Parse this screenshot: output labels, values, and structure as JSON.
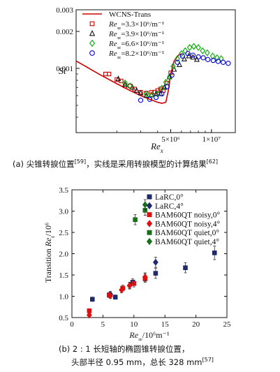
{
  "chart_data": [
    {
      "type": "scatter",
      "ylabel": "St",
      "xlabel": "Re_x",
      "xscale": "log",
      "yscale": "log",
      "xlim": [
        1000000,
        15000000
      ],
      "ylim": [
        0.0003,
        0.003
      ],
      "x_ticks": [
        {
          "value": 5000000,
          "label": "5×10⁶"
        },
        {
          "value": 10000000,
          "label": "1×10⁷"
        }
      ],
      "y_ticks": [
        {
          "value": 0.001,
          "label": "0.001"
        },
        {
          "value": 0.002,
          "label": "0.002"
        },
        {
          "value": 0.003,
          "label": "0.003"
        }
      ],
      "legend_position": "top-left",
      "series": [
        {
          "name": "WCNS-Trans",
          "kind": "line",
          "color": "#cc0000",
          "x": [
            1000000,
            1500000,
            2000000,
            2500000,
            3000000,
            3500000,
            4000000,
            4300000,
            4600000,
            4800000,
            5000000,
            5300000,
            5700000,
            6000000
          ],
          "y": [
            0.00115,
            0.00089,
            0.00075,
            0.00066,
            0.0006,
            0.00056,
            0.00053,
            0.00052,
            0.00053,
            0.00066,
            0.0009,
            0.00115,
            0.00128,
            0.00132
          ]
        },
        {
          "name": "Re∞=3.3×10⁶/m⁻¹",
          "kind": "square",
          "color": "#cc0000",
          "x": [
            1650000,
            1750000,
            2000000,
            2150000,
            2300000,
            2500000,
            2700000,
            3000000,
            3300000,
            3600000,
            3800000,
            4000000,
            4200000,
            4400000,
            4700000,
            5000000
          ],
          "y": [
            0.0009,
            0.0009,
            0.00081,
            0.00079,
            0.00072,
            0.00072,
            0.00068,
            0.00064,
            0.00063,
            0.00064,
            0.00064,
            0.00066,
            0.00068,
            0.00066,
            0.00076,
            0.00092
          ]
        },
        {
          "name": "Re∞=3.9×10⁶/m⁻¹",
          "kind": "triangle",
          "color": "#111111",
          "x": [
            2050000,
            2300000,
            2600000,
            2800000,
            3000000,
            3300000,
            3600000,
            3900000,
            4200000,
            4500000,
            4900000,
            5300000,
            5800000,
            6300000,
            6800000,
            7300000,
            7800000
          ],
          "y": [
            0.00082,
            0.00074,
            0.0007,
            0.00066,
            0.00063,
            0.0006,
            0.00061,
            0.00062,
            0.00062,
            0.0007,
            0.00085,
            0.00098,
            0.00107,
            0.00119,
            0.00126,
            0.00123,
            0.00118
          ]
        },
        {
          "name": "Re∞=6.6×10⁶/m⁻¹",
          "kind": "diamond",
          "color": "#00aa00",
          "x": [
            2300000,
            2500000,
            3300000,
            3600000,
            4000000,
            4300000,
            4600000,
            4900000,
            5200000,
            5600000,
            6000000,
            6400000,
            6900000,
            7400000,
            8000000,
            8600000,
            9300000,
            10200000,
            11000000,
            11800000
          ],
          "y": [
            0.00076,
            0.00072,
            0.00062,
            0.0006,
            0.00062,
            0.00069,
            0.00077,
            0.00085,
            0.00104,
            0.0012,
            0.00132,
            0.00139,
            0.00148,
            0.00151,
            0.00148,
            0.00139,
            0.00134,
            0.00126,
            0.00122,
            0.0012
          ]
        },
        {
          "name": "Re∞=8.2×10⁶/m⁻¹",
          "kind": "circle",
          "color": "#0000dd",
          "x": [
            3000000,
            3500000,
            3900000,
            4300000,
            4700000,
            5100000,
            5600000,
            6100000,
            6700000,
            7300000,
            8000000,
            8700000,
            9400000,
            10300000,
            11200000,
            12200000,
            13300000
          ],
          "y": [
            0.00055,
            0.00056,
            0.00058,
            0.00062,
            0.00071,
            0.00088,
            0.00112,
            0.00126,
            0.00132,
            0.00128,
            0.00124,
            0.00122,
            0.00118,
            0.00116,
            0.00114,
            0.00112,
            0.0011
          ]
        }
      ]
    },
    {
      "type": "scatter",
      "ylabel": "Transition Re_t/10⁶",
      "xlabel": "Re∞/10⁶m⁻¹",
      "xlim": [
        0,
        25
      ],
      "ylim": [
        0.5,
        3.5
      ],
      "x_ticks": [
        0,
        5,
        10,
        15,
        20,
        25
      ],
      "y_ticks": [
        0.5,
        1.0,
        1.5,
        2.0,
        2.5,
        3.0,
        3.5
      ],
      "legend_position": "top-right",
      "series": [
        {
          "name": "LaRC,0°",
          "marker": "square",
          "color": "#1f2a6b",
          "points": [
            {
              "x": 3.3,
              "y": 0.93,
              "err": 0.05
            },
            {
              "x": 7.0,
              "y": 0.98,
              "err": 0.05
            },
            {
              "x": 9.8,
              "y": 1.33,
              "err": 0.08
            },
            {
              "x": 13.5,
              "y": 1.54,
              "err": 0.12
            },
            {
              "x": 18.3,
              "y": 1.67,
              "err": 0.12
            },
            {
              "x": 23.0,
              "y": 2.02,
              "err": 0.16
            }
          ]
        },
        {
          "name": "LaRC,4°",
          "marker": "diamond",
          "color": "#1f2a6b",
          "points": [
            {
              "x": 6.2,
              "y": 1.05,
              "err": 0.06
            },
            {
              "x": 9.3,
              "y": 1.25,
              "err": 0.08
            },
            {
              "x": 11.8,
              "y": 1.45,
              "err": 0.1
            },
            {
              "x": 13.5,
              "y": 1.8,
              "err": 0.12
            }
          ]
        },
        {
          "name": "BAM60QT noisy,0°",
          "marker": "square",
          "color": "#dd1010",
          "points": [
            {
              "x": 2.8,
              "y": 0.66,
              "err": 0.04
            },
            {
              "x": 6.0,
              "y": 1.03,
              "err": 0.06
            },
            {
              "x": 8.2,
              "y": 1.19,
              "err": 0.07
            },
            {
              "x": 10.0,
              "y": 1.3,
              "err": 0.08
            },
            {
              "x": 11.8,
              "y": 1.41,
              "err": 0.08
            }
          ]
        },
        {
          "name": "BAM60QT noisy,4°",
          "marker": "diamond",
          "color": "#dd1010",
          "points": [
            {
              "x": 2.8,
              "y": 0.56,
              "err": 0.04
            },
            {
              "x": 6.2,
              "y": 1.01,
              "err": 0.06
            },
            {
              "x": 8.0,
              "y": 1.15,
              "err": 0.07
            },
            {
              "x": 9.3,
              "y": 1.25,
              "err": 0.07
            },
            {
              "x": 11.8,
              "y": 1.45,
              "err": 0.08
            }
          ]
        },
        {
          "name": "BAM60QT quiet,0°",
          "marker": "square",
          "color": "#1a6e1a",
          "points": [
            {
              "x": 10.2,
              "y": 2.8,
              "err": 0.12
            },
            {
              "x": 11.8,
              "y": 3.02,
              "err": 0.12
            }
          ]
        },
        {
          "name": "BAM60QT quiet,4°",
          "marker": "diamond",
          "color": "#1a6e1a",
          "points": [
            {
              "x": 11.8,
              "y": 3.15,
              "err": 0.12
            }
          ]
        }
      ]
    }
  ],
  "captions": {
    "a_text": "(a) 尖锥转捩位置",
    "a_ref1": "[59]",
    "a_text2": "，实线是采用转捩模型的计算结果",
    "a_ref2": "[62]",
    "b_line1": "(b) 2 : 1 长短轴的椭圆锥转捩位置，",
    "b_line2": "头部半径 0.95 mm，总长 328 mm",
    "b_ref": "[57]"
  },
  "colors": {
    "axis": "#111111",
    "wcns_line": "#cc0000"
  }
}
